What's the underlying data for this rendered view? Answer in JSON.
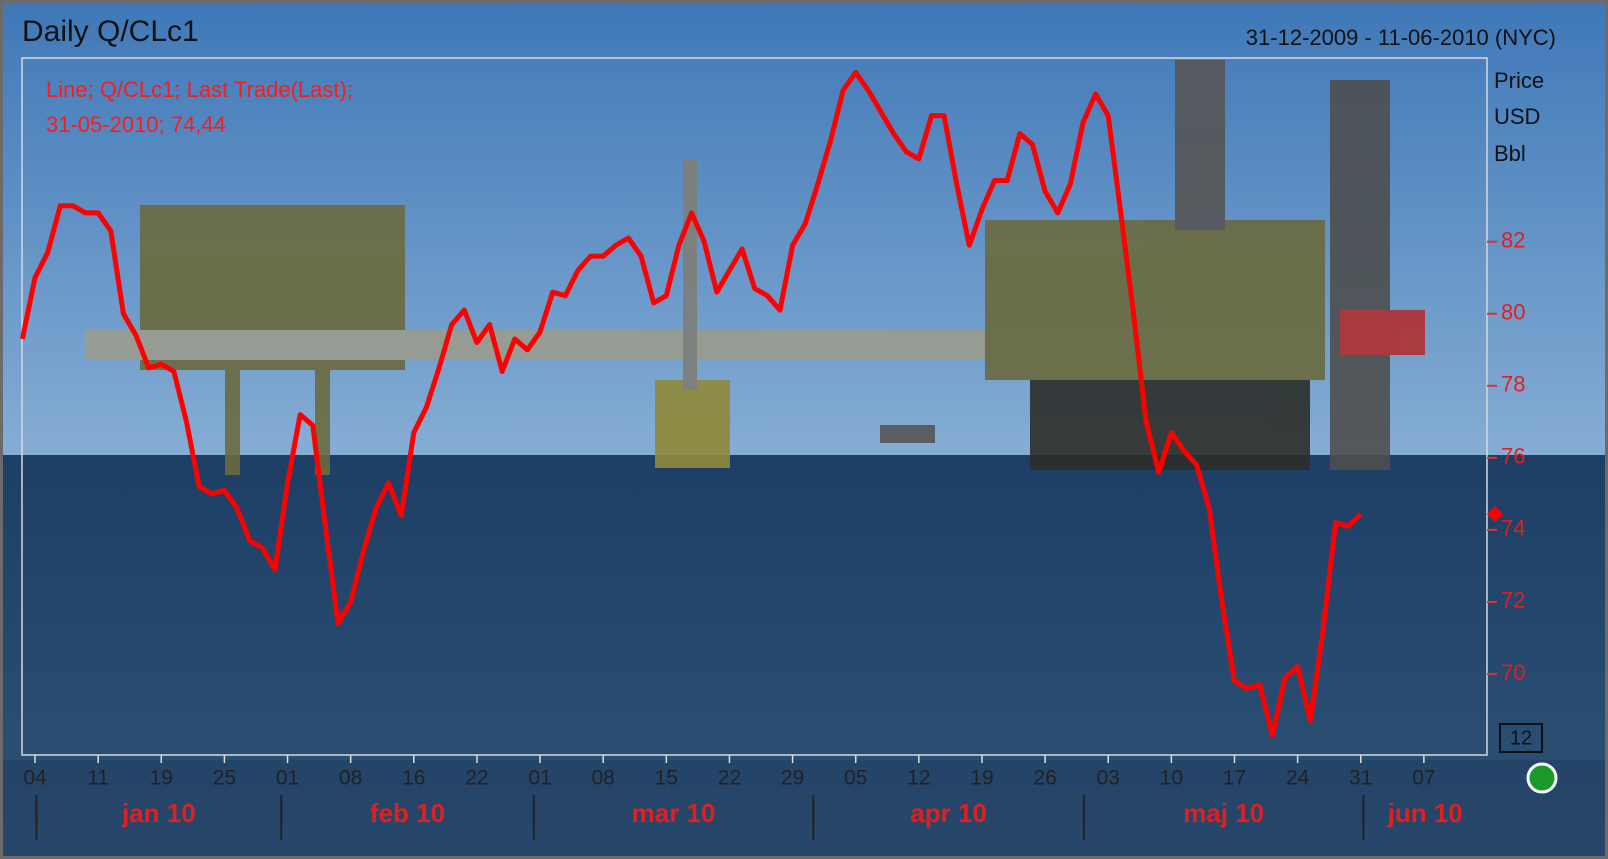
{
  "chart_data": {
    "type": "line",
    "title": "Daily Q/CLc1",
    "date_range": "31-12-2009 - 11-06-2010 (NYC)",
    "unit_lines": [
      "Price",
      "USD",
      "Bbl"
    ],
    "annotation_lines": [
      "Line; Q/CLc1; Last Trade(Last);",
      "31-05-2010; 74,44"
    ],
    "corner_box": "12",
    "months": [
      "jan 10",
      "feb 10",
      "mar 10",
      "apr 10",
      "maj 10",
      "jun 10"
    ],
    "categories": [
      null,
      "04",
      null,
      null,
      null,
      null,
      "11",
      null,
      null,
      null,
      null,
      "19",
      null,
      null,
      null,
      null,
      "25",
      null,
      null,
      null,
      null,
      "01",
      null,
      null,
      null,
      null,
      "08",
      null,
      null,
      null,
      null,
      "16",
      null,
      null,
      null,
      null,
      "22",
      null,
      null,
      null,
      null,
      "01",
      null,
      null,
      null,
      null,
      "08",
      null,
      null,
      null,
      null,
      "15",
      null,
      null,
      null,
      null,
      "22",
      null,
      null,
      null,
      null,
      "29",
      null,
      null,
      null,
      null,
      "05",
      null,
      null,
      null,
      null,
      "12",
      null,
      null,
      null,
      null,
      "19",
      null,
      null,
      null,
      null,
      "26",
      null,
      null,
      null,
      null,
      "03",
      null,
      null,
      null,
      null,
      "10",
      null,
      null,
      null,
      null,
      "17",
      null,
      null,
      null,
      null,
      "24",
      null,
      null,
      null,
      null,
      "31",
      null,
      null,
      null,
      null,
      "07",
      null,
      null,
      null,
      null
    ],
    "series": [
      {
        "name": "Q/CLc1",
        "color": "#ff0000",
        "values": [
          79.3,
          81.0,
          81.7,
          83.0,
          83.0,
          82.8,
          82.8,
          82.3,
          80.0,
          79.4,
          78.5,
          78.6,
          78.4,
          77.0,
          75.2,
          75.0,
          75.1,
          74.6,
          73.7,
          73.5,
          72.9,
          75.3,
          77.2,
          76.9,
          74.1,
          71.4,
          72.0,
          73.4,
          74.6,
          75.3,
          74.4,
          76.7,
          77.4,
          78.5,
          79.7,
          80.1,
          79.2,
          79.7,
          78.4,
          79.3,
          79.0,
          79.5,
          80.6,
          80.5,
          81.2,
          81.6,
          81.6,
          81.9,
          82.1,
          81.6,
          80.3,
          80.5,
          81.9,
          82.8,
          82.0,
          80.6,
          81.2,
          81.8,
          80.7,
          80.5,
          80.1,
          81.9,
          82.5,
          83.6,
          84.8,
          86.2,
          86.7,
          86.2,
          85.6,
          85.0,
          84.5,
          84.3,
          85.5,
          85.5,
          83.6,
          81.9,
          82.9,
          83.7,
          83.7,
          85.0,
          84.7,
          83.4,
          82.8,
          83.6,
          85.3,
          86.1,
          85.5,
          82.8,
          80.0,
          77.0,
          75.6,
          76.7,
          76.2,
          75.8,
          74.6,
          72.0,
          69.8,
          69.6,
          69.7,
          68.3,
          69.9,
          70.2,
          68.7,
          71.2,
          74.2,
          74.1,
          74.44,
          null,
          null,
          null,
          null,
          null,
          null,
          null,
          null,
          null
        ]
      }
    ],
    "ylim": [
      67.75,
      87.1
    ],
    "yticks": [
      70,
      72,
      74,
      76,
      78,
      80,
      82
    ],
    "last_marker": true
  }
}
